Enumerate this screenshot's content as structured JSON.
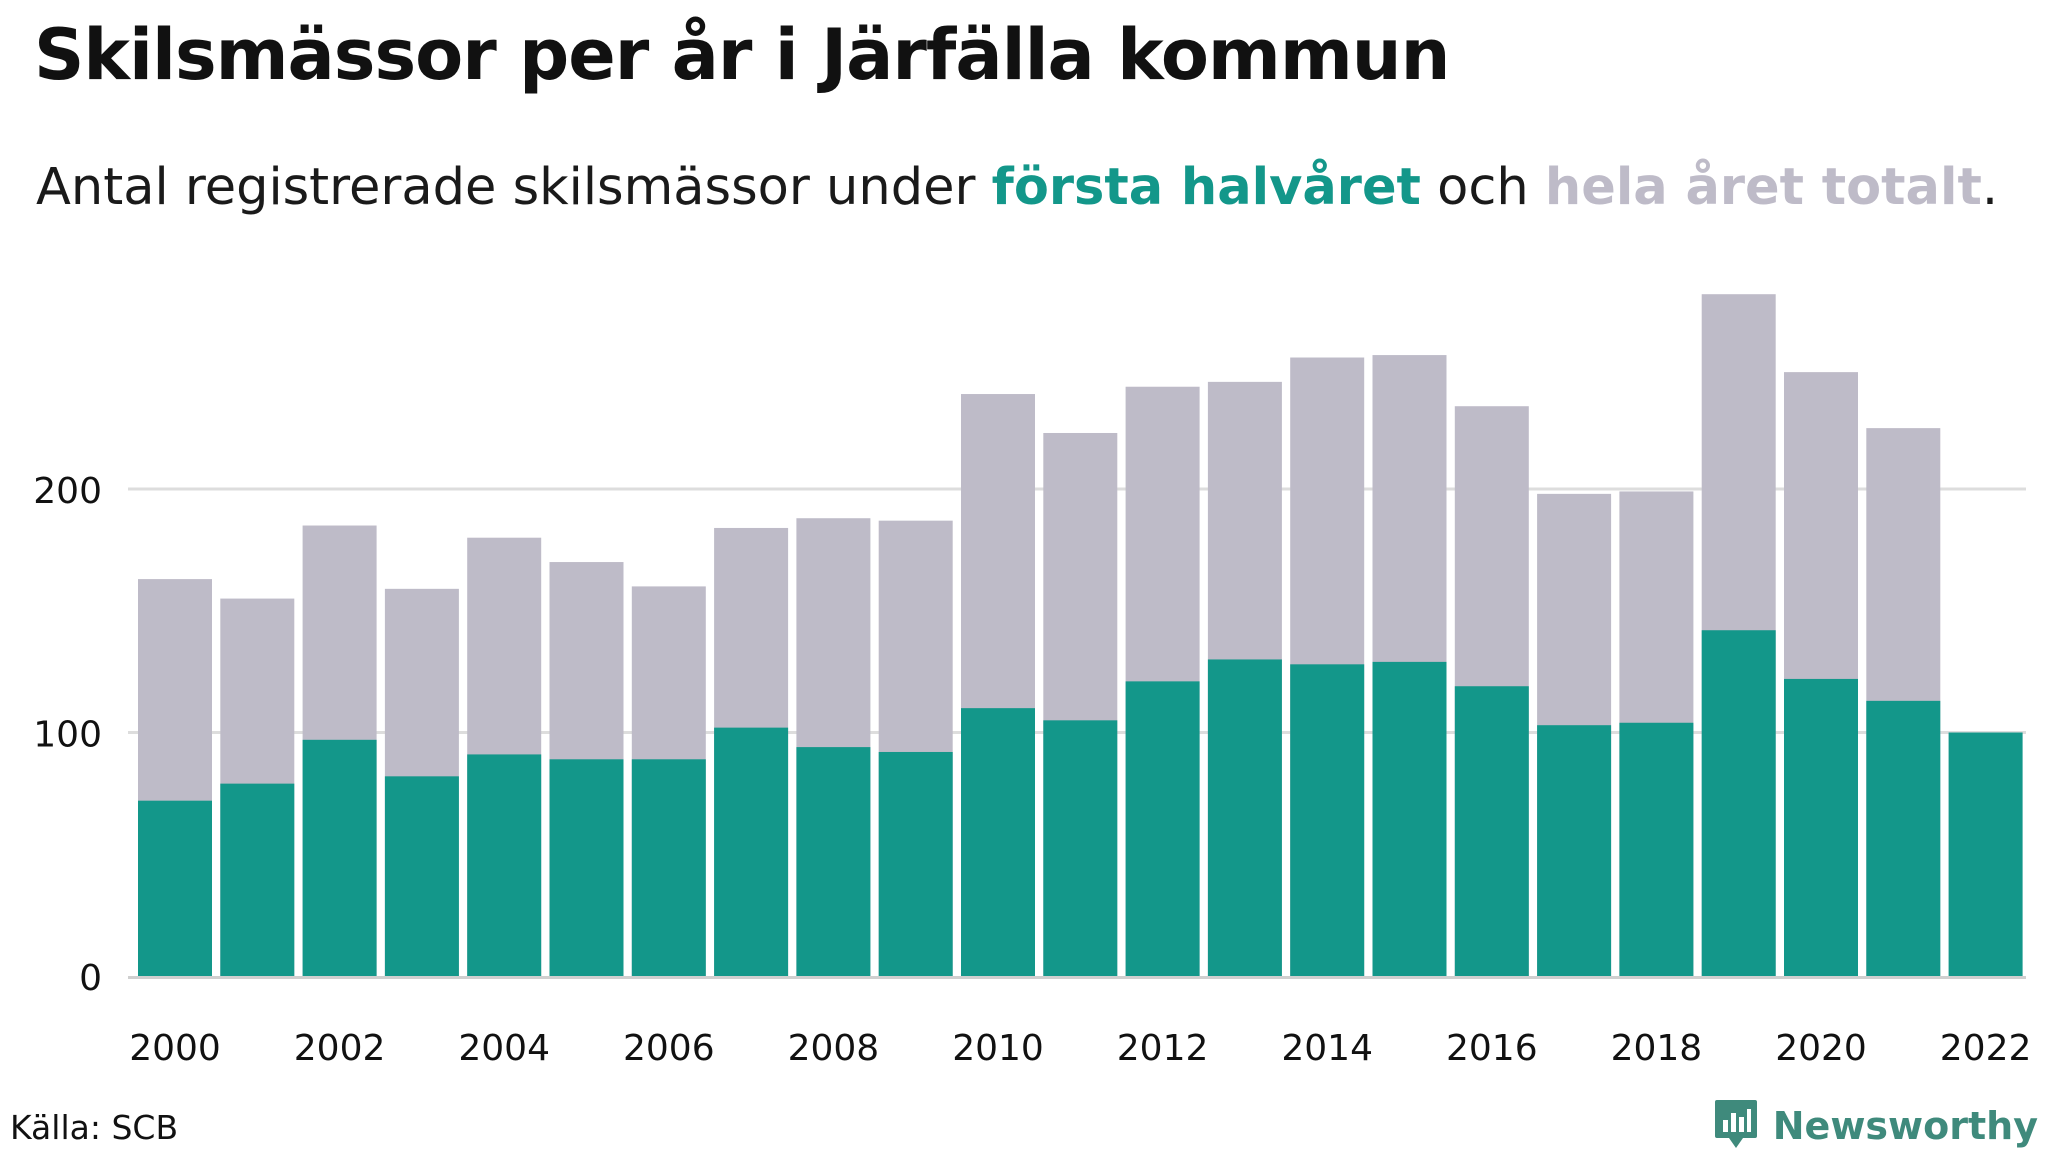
{
  "title": "Skilsmässor per år i Järfälla kommun",
  "subtitle": {
    "prefix": "Antal registrerade skilsmässor under ",
    "highlight_first": "första halvåret",
    "middle": " och ",
    "highlight_total": "hela året totalt",
    "suffix": "."
  },
  "source": "Källa: SCB",
  "brand": "Newsworthy",
  "colors": {
    "first_half": "#13978a",
    "full_year": "#bebbc8",
    "grid": "#dddddd",
    "brand": "#3f8a7c"
  },
  "chart_data": {
    "type": "bar",
    "categories": [
      "2000",
      "2001",
      "2002",
      "2003",
      "2004",
      "2005",
      "2006",
      "2007",
      "2008",
      "2009",
      "2010",
      "2011",
      "2012",
      "2013",
      "2014",
      "2015",
      "2016",
      "2017",
      "2018",
      "2019",
      "2020",
      "2021",
      "2022"
    ],
    "series": [
      {
        "name": "hela året totalt",
        "values": [
          163,
          155,
          185,
          159,
          180,
          170,
          160,
          184,
          188,
          187,
          239,
          223,
          242,
          244,
          254,
          255,
          234,
          198,
          199,
          280,
          248,
          225,
          null
        ]
      },
      {
        "name": "första halvåret",
        "values": [
          72,
          79,
          97,
          82,
          91,
          89,
          89,
          102,
          94,
          92,
          110,
          105,
          121,
          130,
          128,
          129,
          119,
          103,
          104,
          142,
          122,
          113,
          100
        ]
      }
    ],
    "x_tick_labels": [
      "2000",
      "2002",
      "2004",
      "2006",
      "2008",
      "2010",
      "2012",
      "2014",
      "2016",
      "2018",
      "2020",
      "2022"
    ],
    "y_ticks": [
      0,
      100,
      200
    ],
    "ylim": [
      0,
      290
    ],
    "grid": true,
    "overlay": true
  }
}
